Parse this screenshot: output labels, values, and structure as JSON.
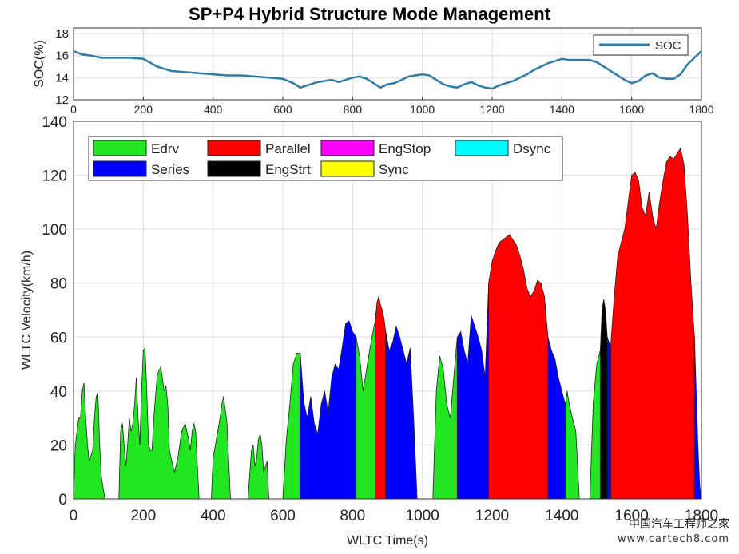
{
  "title": "SP+P4 Hybrid Structure Mode Management",
  "watermark": {
    "line1": "中国汽车工程师之家",
    "line2": "www.cartech8.com"
  },
  "chart_data": [
    {
      "type": "line",
      "ylabel": "SOC(%)",
      "xlabel": "",
      "xlim": [
        0,
        1800
      ],
      "ylim": [
        12,
        18.5
      ],
      "xticks": [
        "0",
        "200",
        "400",
        "600",
        "800",
        "1000",
        "1200",
        "1400",
        "1600",
        "1800"
      ],
      "yticks": [
        "12",
        "14",
        "16",
        "18"
      ],
      "grid": true,
      "legend_position": "top-right",
      "series": [
        {
          "name": "SOC",
          "color": "#2e7ca8",
          "x": [
            0,
            25,
            50,
            80,
            120,
            160,
            200,
            240,
            280,
            320,
            360,
            400,
            440,
            480,
            520,
            560,
            600,
            630,
            650,
            680,
            700,
            720,
            740,
            760,
            780,
            800,
            820,
            840,
            860,
            880,
            900,
            920,
            940,
            960,
            980,
            1000,
            1020,
            1040,
            1060,
            1080,
            1100,
            1120,
            1140,
            1160,
            1180,
            1200,
            1220,
            1240,
            1260,
            1280,
            1300,
            1320,
            1340,
            1360,
            1380,
            1400,
            1420,
            1440,
            1460,
            1480,
            1500,
            1520,
            1540,
            1560,
            1580,
            1600,
            1620,
            1640,
            1660,
            1680,
            1700,
            1720,
            1740,
            1760,
            1780,
            1800
          ],
          "y": [
            16.4,
            16.1,
            16.0,
            15.8,
            15.8,
            15.8,
            15.7,
            15.0,
            14.6,
            14.5,
            14.4,
            14.3,
            14.2,
            14.2,
            14.1,
            14.0,
            13.9,
            13.5,
            13.1,
            13.4,
            13.6,
            13.7,
            13.8,
            13.6,
            13.8,
            14.0,
            14.1,
            13.9,
            13.5,
            13.1,
            13.4,
            13.5,
            13.8,
            14.1,
            14.2,
            14.3,
            14.2,
            13.8,
            13.4,
            13.2,
            13.1,
            13.4,
            13.6,
            13.3,
            13.1,
            13.0,
            13.3,
            13.5,
            13.7,
            14.0,
            14.3,
            14.7,
            15.0,
            15.3,
            15.5,
            15.7,
            15.6,
            15.6,
            15.6,
            15.6,
            15.4,
            15.0,
            14.6,
            14.2,
            13.8,
            13.5,
            13.7,
            14.2,
            14.4,
            14.0,
            13.9,
            13.9,
            14.3,
            15.2,
            15.8,
            16.4
          ]
        }
      ]
    },
    {
      "type": "area",
      "xlabel": "WLTC Time(s)",
      "ylabel": "WLTC Velocity(km/h)",
      "xlim": [
        0,
        1800
      ],
      "ylim": [
        0,
        140
      ],
      "xticks": [
        "0",
        "200",
        "400",
        "600",
        "800",
        "1000",
        "1200",
        "1400",
        "1600",
        "1800"
      ],
      "yticks": [
        "0",
        "20",
        "40",
        "60",
        "80",
        "100",
        "120",
        "140"
      ],
      "grid": true,
      "legend_position": "top-left",
      "legend": [
        {
          "name": "Edrv",
          "color": "#22e622"
        },
        {
          "name": "Parallel",
          "color": "#ff0000"
        },
        {
          "name": "EngStop",
          "color": "#ff00ff"
        },
        {
          "name": "Dsync",
          "color": "#00ffff"
        },
        {
          "name": "Series",
          "color": "#0000ff"
        },
        {
          "name": "EngStrt",
          "color": "#000000"
        },
        {
          "name": "Sync",
          "color": "#ffff00"
        }
      ],
      "series": [
        {
          "name": "Edrv",
          "color": "#22e622",
          "x": [
            0,
            5,
            15,
            20,
            25,
            30,
            35,
            40,
            45,
            55,
            60,
            65,
            70,
            75,
            80,
            90,
            100,
            130,
            135,
            140,
            150,
            155,
            160,
            165,
            170,
            175,
            180,
            185,
            190,
            195,
            200,
            205,
            210,
            215,
            220,
            225,
            230,
            240,
            250,
            260,
            265,
            270,
            275,
            285,
            290,
            300,
            310,
            320,
            330,
            335,
            340,
            345,
            350,
            360,
            370,
            380,
            390,
            395,
            400,
            420,
            425,
            430,
            435,
            440,
            450,
            500,
            510,
            515,
            520,
            525,
            530,
            535,
            540,
            545,
            550,
            555,
            560,
            565,
            570,
            600,
            610,
            620,
            630,
            640,
            650
          ],
          "y": [
            0,
            20,
            30,
            30,
            40,
            43,
            30,
            20,
            14,
            18,
            30,
            38,
            39,
            20,
            8,
            0,
            0,
            0,
            25,
            28,
            12,
            20,
            30,
            25,
            28,
            35,
            45,
            30,
            20,
            40,
            55,
            56,
            40,
            20,
            18,
            18,
            30,
            46,
            49,
            40,
            42,
            35,
            18,
            12,
            10,
            16,
            25,
            28,
            22,
            18,
            25,
            28,
            25,
            0,
            0,
            0,
            0,
            0,
            15,
            30,
            35,
            38,
            33,
            28,
            0,
            0,
            18,
            20,
            12,
            15,
            22,
            24,
            20,
            10,
            12,
            14,
            0,
            0,
            0,
            0,
            22,
            35,
            50,
            54,
            54
          ]
        },
        {
          "name": "Series",
          "color": "#0000ff",
          "x": [
            650,
            660,
            670,
            680,
            690,
            700,
            710,
            720,
            730,
            740,
            750,
            760,
            770,
            780,
            790,
            800,
            810
          ],
          "y": [
            54,
            36,
            30,
            38,
            28,
            24,
            35,
            40,
            32,
            45,
            50,
            48,
            56,
            65,
            66,
            62,
            60
          ]
        },
        {
          "name": "Edrv",
          "color": "#22e622",
          "x": [
            810,
            820,
            830,
            840,
            850,
            860,
            865
          ],
          "y": [
            60,
            53,
            40,
            48,
            56,
            63,
            66
          ]
        },
        {
          "name": "Parallel",
          "color": "#ff0000",
          "x": [
            865,
            870,
            875,
            880,
            885,
            890,
            895
          ],
          "y": [
            66,
            73,
            75,
            72,
            70,
            67,
            62
          ]
        },
        {
          "name": "Series",
          "color": "#0000ff",
          "x": [
            895,
            905,
            915,
            925,
            935,
            945,
            955,
            965,
            975,
            985
          ],
          "y": [
            62,
            55,
            58,
            64,
            60,
            55,
            50,
            56,
            30,
            0
          ]
        },
        {
          "name": "Edrv",
          "color": "#22e622",
          "x": [
            1030,
            1040,
            1050,
            1060,
            1070,
            1080,
            1090,
            1100
          ],
          "y": [
            0,
            40,
            53,
            48,
            35,
            30,
            45,
            60
          ]
        },
        {
          "name": "Series",
          "color": "#0000ff",
          "x": [
            1100,
            1110,
            1120,
            1130,
            1140,
            1150,
            1160,
            1170,
            1180,
            1190
          ],
          "y": [
            60,
            62,
            55,
            50,
            68,
            64,
            60,
            55,
            45,
            80
          ]
        },
        {
          "name": "Parallel",
          "color": "#ff0000",
          "x": [
            1190,
            1200,
            1210,
            1220,
            1230,
            1240,
            1250,
            1260,
            1270,
            1280,
            1290,
            1300,
            1310,
            1320,
            1330,
            1340,
            1350,
            1360
          ],
          "y": [
            80,
            88,
            92,
            95,
            96,
            97,
            98,
            96,
            94,
            90,
            85,
            78,
            75,
            77,
            81,
            80,
            75,
            60
          ]
        },
        {
          "name": "Series",
          "color": "#0000ff",
          "x": [
            1360,
            1370,
            1380,
            1390,
            1400,
            1410
          ],
          "y": [
            60,
            55,
            52,
            45,
            40,
            35
          ]
        },
        {
          "name": "Edrv",
          "color": "#22e622",
          "x": [
            1410,
            1415,
            1420,
            1430,
            1440,
            1450,
            1460,
            1480,
            1490,
            1500,
            1510
          ],
          "y": [
            35,
            40,
            36,
            30,
            25,
            0,
            0,
            0,
            36,
            50,
            55
          ]
        },
        {
          "name": "EngStrt",
          "color": "#000000",
          "x": [
            1510,
            1515,
            1520,
            1525,
            1530
          ],
          "y": [
            55,
            70,
            74,
            70,
            60
          ]
        },
        {
          "name": "Series",
          "color": "#0000ff",
          "x": [
            1530,
            1535,
            1540
          ],
          "y": [
            60,
            58,
            57
          ]
        },
        {
          "name": "Parallel",
          "color": "#ff0000",
          "x": [
            1540,
            1550,
            1560,
            1570,
            1580,
            1590,
            1600,
            1610,
            1620,
            1630,
            1640,
            1650,
            1660,
            1670,
            1680,
            1690,
            1700,
            1710,
            1720,
            1730,
            1740,
            1750,
            1760,
            1770,
            1780
          ],
          "y": [
            57,
            75,
            90,
            95,
            100,
            110,
            120,
            121,
            118,
            108,
            105,
            114,
            105,
            100,
            110,
            118,
            125,
            127,
            126,
            128,
            130,
            124,
            105,
            80,
            60
          ]
        },
        {
          "name": "Series",
          "color": "#0000ff",
          "x": [
            1780,
            1785,
            1790,
            1795,
            1800
          ],
          "y": [
            60,
            40,
            20,
            5,
            0
          ]
        }
      ]
    }
  ]
}
